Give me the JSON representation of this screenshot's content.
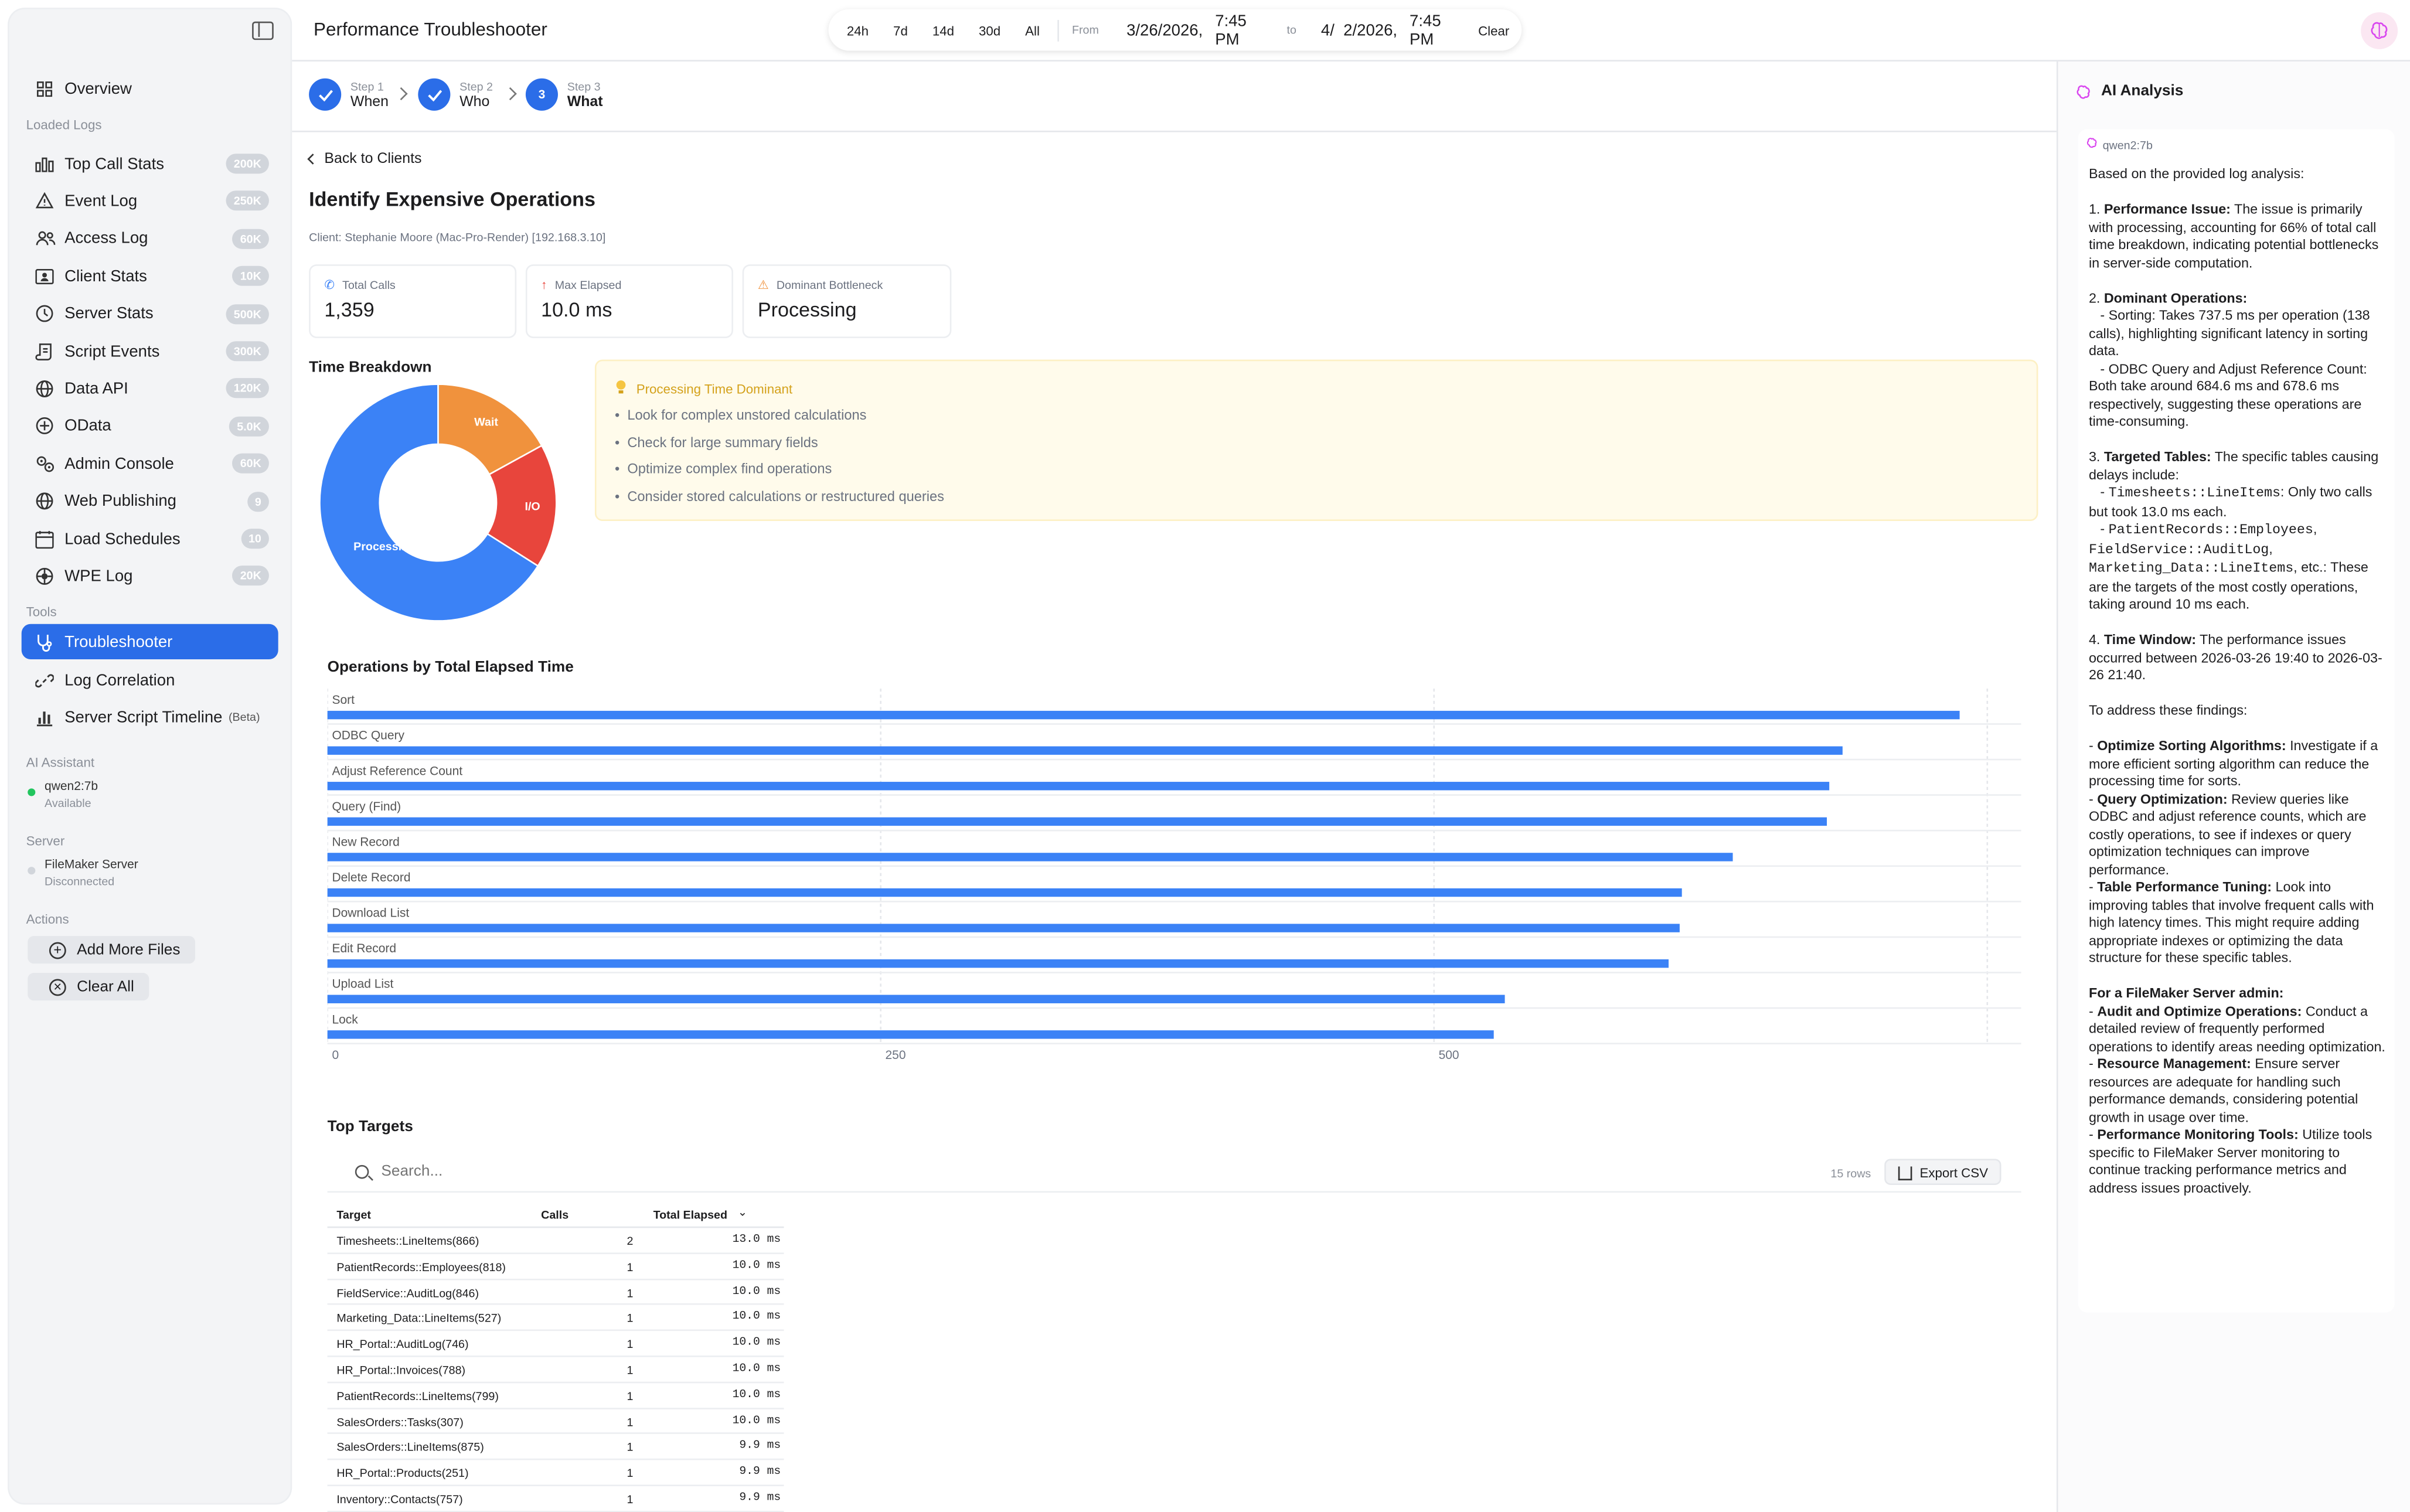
{
  "app": {
    "title": "Performance Troubleshooter"
  },
  "header": {
    "quick_ranges": [
      "24h",
      "7d",
      "14d",
      "30d",
      "All"
    ],
    "from_label": "From",
    "from_date": "3/26/2026,",
    "from_time": "7:45 PM",
    "to_label": "to",
    "to_date": "4/  2/2026,",
    "to_time": "7:45 PM",
    "clear_label": "Clear"
  },
  "sidebar": {
    "overview": "Overview",
    "loaded_logs_title": "Loaded Logs",
    "logs": [
      {
        "label": "Top Call Stats",
        "badge": "200K",
        "icon": "bar-chart-icon"
      },
      {
        "label": "Event Log",
        "badge": "250K",
        "icon": "warning-icon"
      },
      {
        "label": "Access Log",
        "badge": "60K",
        "icon": "users-icon"
      },
      {
        "label": "Client Stats",
        "badge": "10K",
        "icon": "id-card-icon"
      },
      {
        "label": "Server Stats",
        "badge": "500K",
        "icon": "clock-icon"
      },
      {
        "label": "Script Events",
        "badge": "300K",
        "icon": "script-icon"
      },
      {
        "label": "Data API",
        "badge": "120K",
        "icon": "globe-icon"
      },
      {
        "label": "OData",
        "badge": "5.0K",
        "icon": "odata-icon"
      },
      {
        "label": "Admin Console",
        "badge": "60K",
        "icon": "gears-icon"
      },
      {
        "label": "Web Publishing",
        "badge": "9",
        "icon": "globe-icon"
      },
      {
        "label": "Load Schedules",
        "badge": "10",
        "icon": "calendar-icon"
      },
      {
        "label": "WPE Log",
        "badge": "20K",
        "icon": "network-icon"
      }
    ],
    "tools_title": "Tools",
    "tools": [
      {
        "label": "Troubleshooter",
        "suffix": ""
      },
      {
        "label": "Log Correlation",
        "suffix": ""
      },
      {
        "label": "Server Script Timeline",
        "suffix": "(Beta)"
      }
    ],
    "ai_title": "AI Assistant",
    "ai_model": "qwen2:7b",
    "ai_status": "Available",
    "server_title": "Server",
    "server_name": "FileMaker Server",
    "server_status": "Disconnected",
    "actions_title": "Actions",
    "add_files": "Add More Files",
    "clear_all": "Clear All"
  },
  "steps": [
    {
      "num": "Step 1",
      "label": "When"
    },
    {
      "num": "Step 2",
      "label": "Who"
    },
    {
      "num": "Step 3",
      "label": "What",
      "badge": "3"
    }
  ],
  "main": {
    "back": "Back to Clients",
    "title": "Identify Expensive Operations",
    "client": "Client: Stephanie Moore (Mac-Pro-Render) [192.168.3.10]",
    "cards": [
      {
        "label": "Total Calls",
        "value": "1,359"
      },
      {
        "label": "Max Elapsed",
        "value": "10.0 ms"
      },
      {
        "label": "Dominant Bottleneck",
        "value": "Processing"
      }
    ],
    "time_breakdown_title": "Time Breakdown",
    "tips_title": "Processing Time Dominant",
    "tips": [
      "Look for complex unstored calculations",
      "Check for large summary fields",
      "Optimize complex find operations",
      "Consider stored calculations or restructured queries"
    ],
    "ops_title": "Operations by Total Elapsed Time",
    "top_targets_title": "Top Targets",
    "search_placeholder": "Search...",
    "rows_count": "15 rows",
    "export": "Export CSV",
    "table_headers": [
      "Target",
      "Calls",
      "Total Elapsed"
    ],
    "table_rows": [
      [
        "Timesheets::LineItems(866)",
        "2",
        "13.0 ms"
      ],
      [
        "PatientRecords::Employees(818)",
        "1",
        "10.0 ms"
      ],
      [
        "FieldService::AuditLog(846)",
        "1",
        "10.0 ms"
      ],
      [
        "Marketing_Data::LineItems(527)",
        "1",
        "10.0 ms"
      ],
      [
        "HR_Portal::AuditLog(746)",
        "1",
        "10.0 ms"
      ],
      [
        "HR_Portal::Invoices(788)",
        "1",
        "10.0 ms"
      ],
      [
        "PatientRecords::LineItems(799)",
        "1",
        "10.0 ms"
      ],
      [
        "SalesOrders::Tasks(307)",
        "1",
        "10.0 ms"
      ],
      [
        "SalesOrders::LineItems(875)",
        "1",
        "9.9 ms"
      ],
      [
        "HR_Portal::Products(251)",
        "1",
        "9.9 ms"
      ],
      [
        "Inventory::Contacts(757)",
        "1",
        "9.9 ms"
      ]
    ]
  },
  "chart_data": [
    {
      "type": "pie",
      "title": "Time Breakdown",
      "categories": [
        "Processing",
        "Wait",
        "I/O"
      ],
      "values": [
        66,
        17,
        17
      ],
      "colors": [
        "#3b82f6",
        "#f0923d",
        "#e8453c"
      ]
    },
    {
      "type": "bar",
      "orientation": "horizontal",
      "title": "Operations by Total Elapsed Time",
      "categories": [
        "Sort",
        "ODBC Query",
        "Adjust Reference Count",
        "Query (Find)",
        "New Record",
        "Delete Record",
        "Download List",
        "Edit Record",
        "Upload List",
        "Lock"
      ],
      "values": [
        737.5,
        684.6,
        678.6,
        677.5,
        635,
        612,
        611,
        606,
        532,
        527
      ],
      "xlim": [
        0,
        750
      ],
      "xticks": [
        "0",
        "250",
        "500"
      ],
      "color": "#3b82f6"
    }
  ],
  "ai_panel": {
    "title": "AI Analysis",
    "model": "qwen2:7b",
    "paragraphs": [
      [
        {
          "t": "Based on the provided log analysis:"
        }
      ],
      [
        {
          "t": "1. "
        },
        {
          "b": "Performance Issue:"
        },
        {
          "t": " The issue is primarily with processing, accounting for 66% of total call time breakdown, indicating potential bottlenecks in server-side computation."
        }
      ],
      [
        {
          "t": "2. "
        },
        {
          "b": "Dominant Operations:"
        },
        {
          "t": "\n   - Sorting: Takes 737.5 ms per operation (138 calls), highlighting significant latency in sorting data.\n   - ODBC Query and Adjust Reference Count: Both take around 684.6 ms and 678.6 ms respectively, suggesting these operations are time-consuming."
        }
      ],
      [
        {
          "t": "3. "
        },
        {
          "b": "Targeted Tables:"
        },
        {
          "t": " The specific tables causing delays include:\n   - "
        },
        {
          "m": "Timesheets::LineItems"
        },
        {
          "t": ": Only two calls but took 13.0 ms each.\n   - "
        },
        {
          "m": "PatientRecords::Employees"
        },
        {
          "t": ", "
        },
        {
          "m": "FieldService::AuditLog"
        },
        {
          "t": ", "
        },
        {
          "m": "Marketing_Data::LineItems"
        },
        {
          "t": ", etc.: These are the targets of the most costly operations, taking around 10 ms each."
        }
      ],
      [
        {
          "t": "4. "
        },
        {
          "b": "Time Window:"
        },
        {
          "t": " The performance issues occurred between 2026-03-26 19:40 to 2026-03-26 21:40."
        }
      ],
      [
        {
          "t": "To address these findings:"
        }
      ],
      [
        {
          "t": "- "
        },
        {
          "b": "Optimize Sorting Algorithms:"
        },
        {
          "t": " Investigate if a more efficient sorting algorithm can reduce the processing time for sorts.\n- "
        },
        {
          "b": "Query Optimization:"
        },
        {
          "t": " Review queries like ODBC and adjust reference counts, which are costly operations, to see if indexes or query optimization techniques can improve performance.\n- "
        },
        {
          "b": "Table Performance Tuning:"
        },
        {
          "t": " Look into improving tables that involve frequent calls with high latency times. This might require adding appropriate indexes or optimizing the data structure for these specific tables."
        }
      ],
      [
        {
          "b": "For a FileMaker Server admin:"
        },
        {
          "t": "\n- "
        },
        {
          "b": "Audit and Optimize Operations:"
        },
        {
          "t": " Conduct a detailed review of frequently performed operations to identify areas needing optimization.\n- "
        },
        {
          "b": "Resource Management:"
        },
        {
          "t": " Ensure server resources are adequate for handling such performance demands, considering potential growth in usage over time.\n- "
        },
        {
          "b": "Performance Monitoring Tools:"
        },
        {
          "t": " Utilize tools specific to FileMaker Server monitoring to continue tracking performance metrics and address issues proactively."
        }
      ]
    ]
  }
}
